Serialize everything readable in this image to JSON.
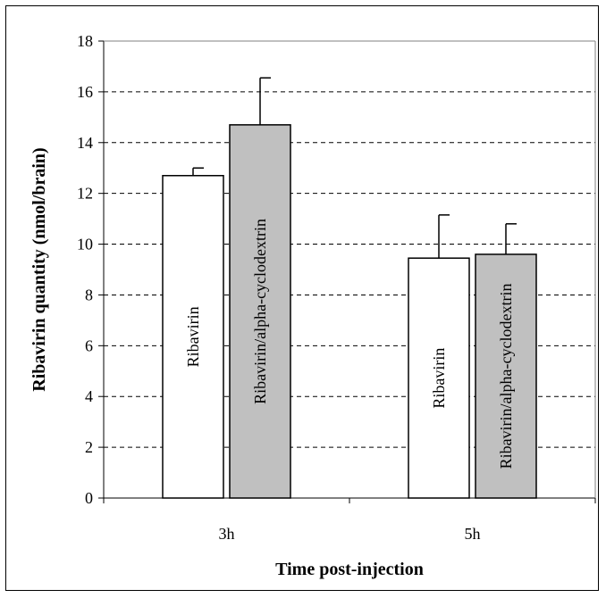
{
  "chart_data": {
    "type": "bar",
    "title": "",
    "xlabel": "Time post-injection",
    "ylabel": "Ribavirin quantity (nmol/brain)",
    "categories": [
      "3h",
      "5h"
    ],
    "series": [
      {
        "name": "Ribavirin",
        "values": [
          12.7,
          9.45
        ],
        "errors": [
          0.3,
          1.7
        ],
        "color": "#ffffff"
      },
      {
        "name": "Ribavirin/alpha-cyclodextrin",
        "values": [
          14.7,
          9.6
        ],
        "errors": [
          1.85,
          1.2
        ],
        "color": "#c0c0c0"
      }
    ],
    "bar_labels": [
      [
        "Ribavirin",
        "Ribavirin/alpha-cyclodextrin"
      ],
      [
        "Ribavirin",
        "Ribavirin/alpha-cyclodextrin"
      ]
    ],
    "ylim": [
      0,
      18
    ],
    "yticks": [
      "0",
      "2",
      "4",
      "6",
      "8",
      "10",
      "12",
      "14",
      "16",
      "18"
    ],
    "grid": "horizontal dashed",
    "legend": "none"
  }
}
